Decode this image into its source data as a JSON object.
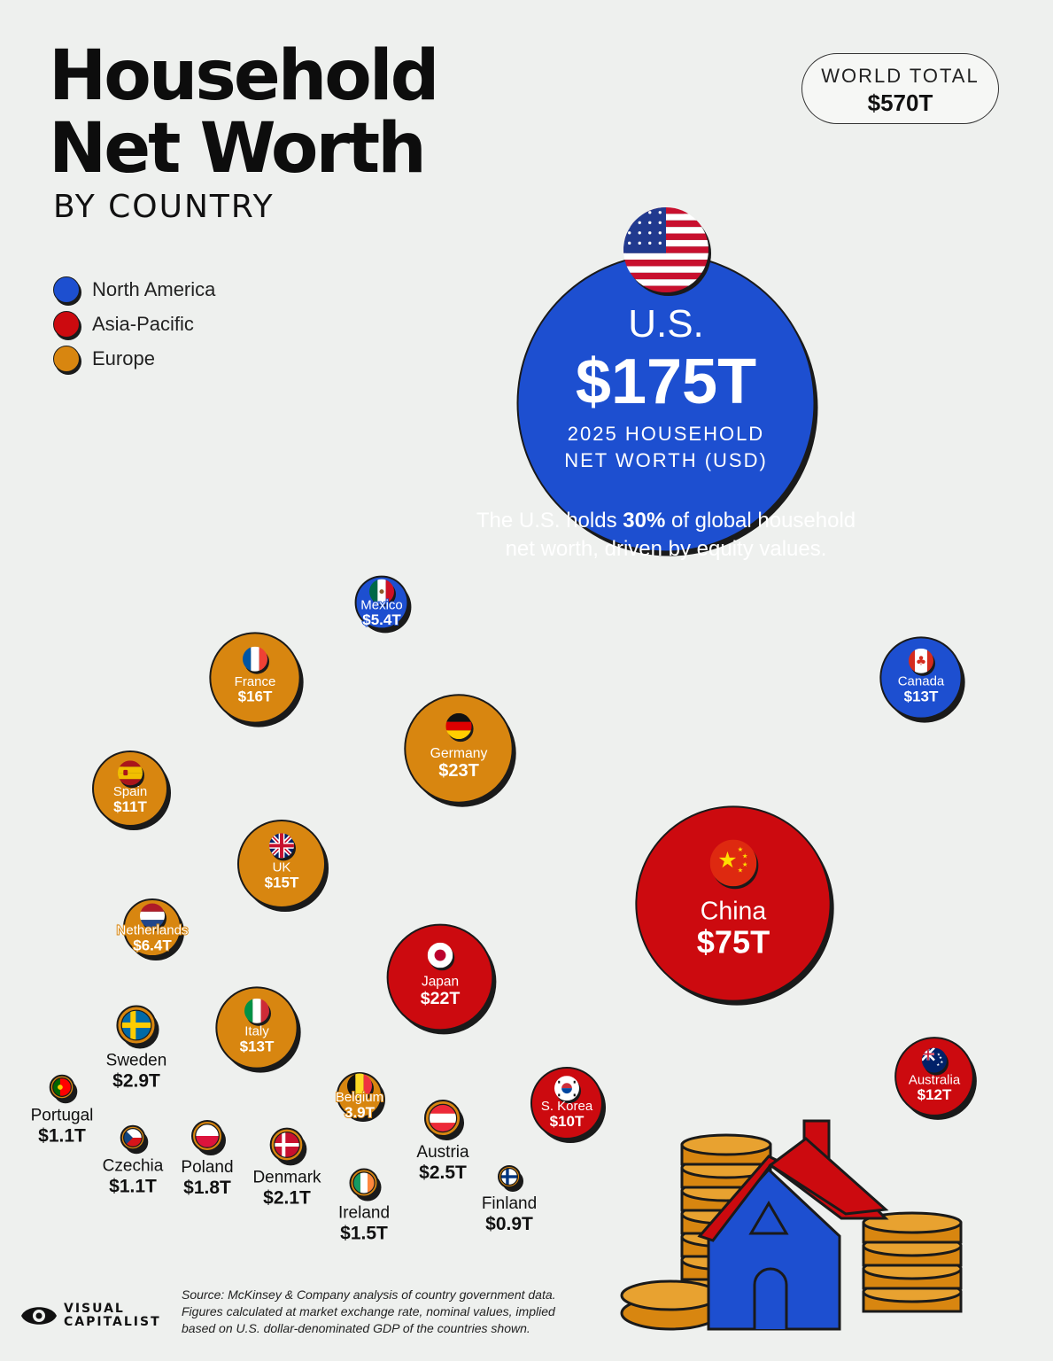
{
  "header": {
    "title_line1": "Household",
    "title_line2": "Net Worth",
    "subtitle": "BY COUNTRY"
  },
  "world_total": {
    "label": "WORLD TOTAL",
    "value": "$570T"
  },
  "legend": [
    {
      "label": "North America",
      "color": "#1d4fd0"
    },
    {
      "label": "Asia-Pacific",
      "color": "#cc0a0f"
    },
    {
      "label": "Europe",
      "color": "#d88610"
    }
  ],
  "chart_data": {
    "type": "bubble",
    "units": "USD trillions",
    "measure_label": "2025 HOUSEHOLD NET WORTH (USD)",
    "annotation": {
      "before": "The U.S. holds ",
      "highlight": "30%",
      "after_line1": " of global household",
      "line2": "net worth, driven by equity values."
    },
    "series": [
      {
        "name": "U.S.",
        "value": 175,
        "label": "$175T",
        "region": "North America",
        "flag": "us-flag-icon"
      },
      {
        "name": "China",
        "value": 75,
        "label": "$75T",
        "region": "Asia-Pacific",
        "flag": "china-flag-icon"
      },
      {
        "name": "Germany",
        "value": 23,
        "label": "$23T",
        "region": "Europe",
        "flag": "germany-flag-icon"
      },
      {
        "name": "Japan",
        "value": 22,
        "label": "$22T",
        "region": "Asia-Pacific",
        "flag": "japan-flag-icon"
      },
      {
        "name": "France",
        "value": 16,
        "label": "$16T",
        "region": "Europe",
        "flag": "france-flag-icon"
      },
      {
        "name": "UK",
        "value": 15,
        "label": "$15T",
        "region": "Europe",
        "flag": "uk-flag-icon"
      },
      {
        "name": "Canada",
        "value": 13,
        "label": "$13T",
        "region": "North America",
        "flag": "canada-flag-icon"
      },
      {
        "name": "Italy",
        "value": 13,
        "label": "$13T",
        "region": "Europe",
        "flag": "italy-flag-icon"
      },
      {
        "name": "Australia",
        "value": 12,
        "label": "$12T",
        "region": "Asia-Pacific",
        "flag": "australia-flag-icon"
      },
      {
        "name": "Spain",
        "value": 11,
        "label": "$11T",
        "region": "Europe",
        "flag": "spain-flag-icon"
      },
      {
        "name": "S. Korea",
        "value": 10,
        "label": "$10T",
        "region": "Asia-Pacific",
        "flag": "south-korea-flag-icon"
      },
      {
        "name": "Netherlands",
        "value": 6.4,
        "label": "$6.4T",
        "region": "Europe",
        "flag": "netherlands-flag-icon"
      },
      {
        "name": "Mexico",
        "value": 5.4,
        "label": "$5.4T",
        "region": "North America",
        "flag": "mexico-flag-icon"
      },
      {
        "name": "Belgium",
        "value": 3.9,
        "label": "3.9T",
        "region": "Europe",
        "flag": "belgium-flag-icon"
      },
      {
        "name": "Sweden",
        "value": 2.9,
        "label": "$2.9T",
        "region": "Europe",
        "flag": "sweden-flag-icon"
      },
      {
        "name": "Austria",
        "value": 2.5,
        "label": "$2.5T",
        "region": "Europe",
        "flag": "austria-flag-icon"
      },
      {
        "name": "Denmark",
        "value": 2.1,
        "label": "$2.1T",
        "region": "Europe",
        "flag": "denmark-flag-icon"
      },
      {
        "name": "Poland",
        "value": 1.8,
        "label": "$1.8T",
        "region": "Europe",
        "flag": "poland-flag-icon"
      },
      {
        "name": "Ireland",
        "value": 1.5,
        "label": "$1.5T",
        "region": "Europe",
        "flag": "ireland-flag-icon"
      },
      {
        "name": "Portugal",
        "value": 1.1,
        "label": "$1.1T",
        "region": "Europe",
        "flag": "portugal-flag-icon"
      },
      {
        "name": "Czechia",
        "value": 1.1,
        "label": "$1.1T",
        "region": "Europe",
        "flag": "czechia-flag-icon"
      },
      {
        "name": "Finland",
        "value": 0.9,
        "label": "$0.9T",
        "region": "Europe",
        "flag": "finland-flag-icon"
      }
    ]
  },
  "source": {
    "line1": "Source: McKinsey & Company analysis of country government data.",
    "line2": "Figures calculated at market exchange rate, nominal values, implied",
    "line3": "based on U.S. dollar-denominated GDP of the countries shown."
  },
  "brand": {
    "line1": "VISUAL",
    "line2": "CAPITALIST"
  }
}
